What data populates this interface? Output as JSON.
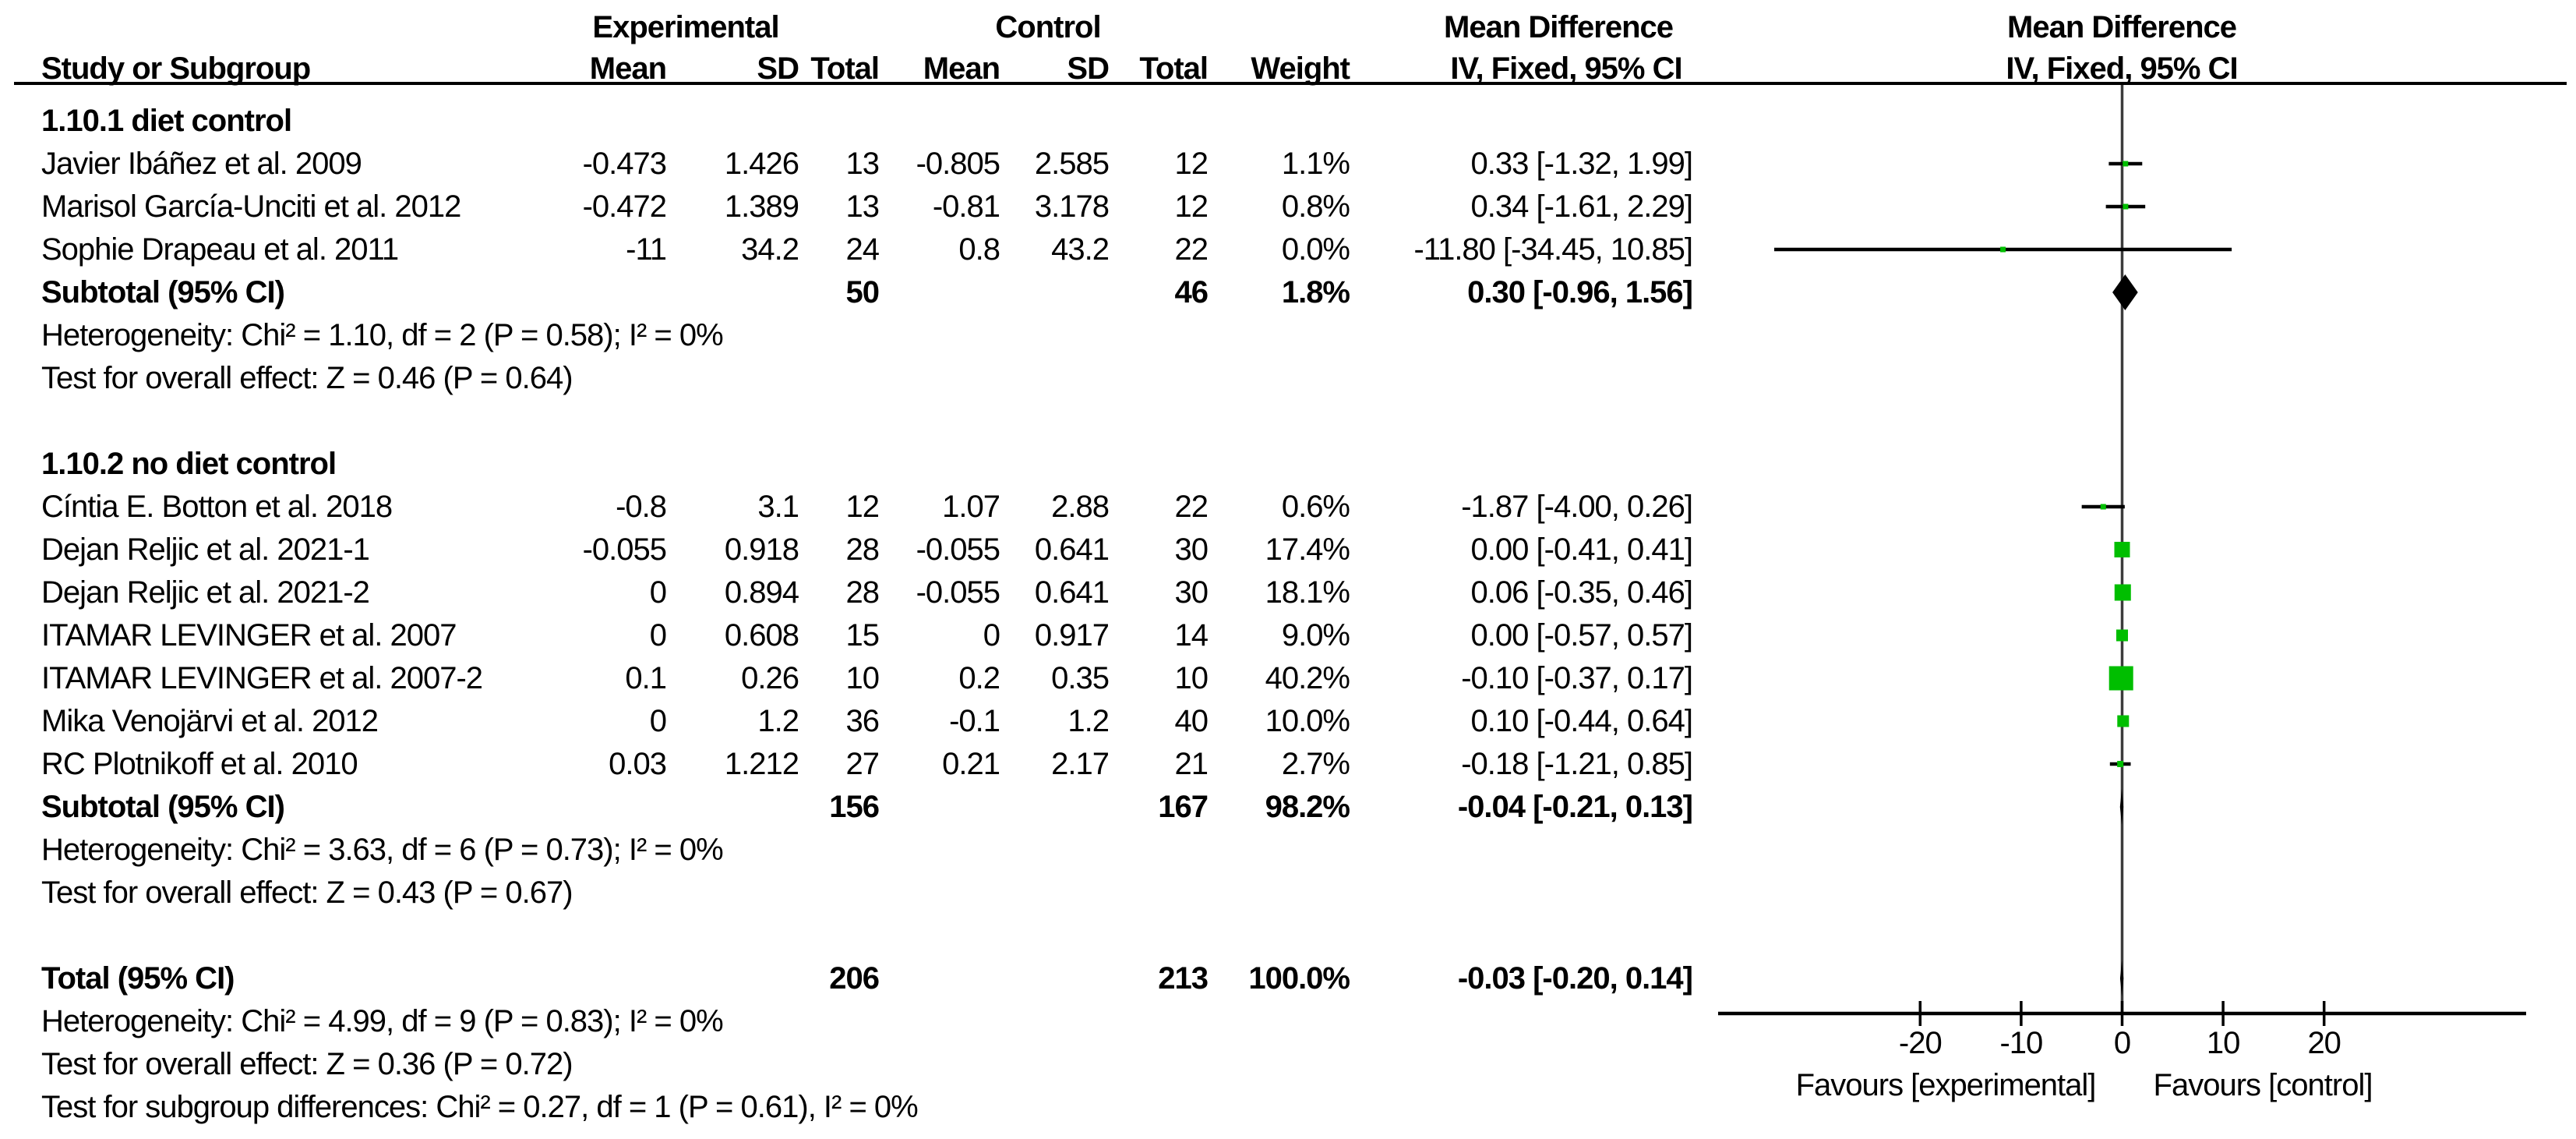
{
  "headers": {
    "experimental": "Experimental",
    "control": "Control",
    "mean_difference": "Mean Difference",
    "study": "Study or Subgroup",
    "mean": "Mean",
    "sd": "SD",
    "total": "Total",
    "weight": "Weight",
    "iv": "IV, Fixed, 95% CI"
  },
  "colors": {
    "square": "#00BE00",
    "diamond": "#000000",
    "ci_line": "#000000",
    "zero_line": "#3C3C3C",
    "axis": "#000000"
  },
  "chart_data": {
    "type": "forest",
    "effect_measure": "Mean Difference",
    "method": "IV, Fixed, 95% CI",
    "xlim": [
      -40,
      40
    ],
    "x_ticks": [
      -20,
      -10,
      0,
      10,
      20
    ],
    "x_tick_labels": [
      "-20",
      "-10",
      "0",
      "10",
      "20"
    ],
    "favours_left": "Favours [experimental]",
    "favours_right": "Favours [control]",
    "subgroups": [
      {
        "name": "1.10.1 diet control",
        "studies": [
          {
            "name": "Javier Ibáñez et al. 2009",
            "exp": {
              "mean": "-0.473",
              "sd": "1.426",
              "total": "13"
            },
            "ctrl": {
              "mean": "-0.805",
              "sd": "2.585",
              "total": "12"
            },
            "weight": "1.1%",
            "weight_pct": 1.1,
            "md": 0.33,
            "ci_low": -1.32,
            "ci_high": 1.99,
            "ci_text": "0.33 [-1.32, 1.99]"
          },
          {
            "name": "Marisol García-Unciti et al. 2012",
            "exp": {
              "mean": "-0.472",
              "sd": "1.389",
              "total": "13"
            },
            "ctrl": {
              "mean": "-0.81",
              "sd": "3.178",
              "total": "12"
            },
            "weight": "0.8%",
            "weight_pct": 0.8,
            "md": 0.34,
            "ci_low": -1.61,
            "ci_high": 2.29,
            "ci_text": "0.34 [-1.61, 2.29]"
          },
          {
            "name": "Sophie Drapeau et al. 2011",
            "exp": {
              "mean": "-11",
              "sd": "34.2",
              "total": "24"
            },
            "ctrl": {
              "mean": "0.8",
              "sd": "43.2",
              "total": "22"
            },
            "weight": "0.0%",
            "weight_pct": 0.0,
            "md": -11.8,
            "ci_low": -34.45,
            "ci_high": 10.85,
            "ci_text": "-11.80 [-34.45, 10.85]"
          }
        ],
        "subtotal": {
          "label": "Subtotal (95% CI)",
          "exp_total": "50",
          "ctrl_total": "46",
          "weight": "1.8%",
          "md": 0.3,
          "ci_low": -0.96,
          "ci_high": 1.56,
          "ci_text": "0.30 [-0.96, 1.56]"
        },
        "heterogeneity": "Heterogeneity: Chi² = 1.10, df = 2 (P = 0.58); I² = 0%",
        "overall_effect": "Test for overall effect: Z = 0.46 (P = 0.64)"
      },
      {
        "name": "1.10.2 no diet control",
        "studies": [
          {
            "name": "Cíntia E. Botton et al. 2018",
            "exp": {
              "mean": "-0.8",
              "sd": "3.1",
              "total": "12"
            },
            "ctrl": {
              "mean": "1.07",
              "sd": "2.88",
              "total": "22"
            },
            "weight": "0.6%",
            "weight_pct": 0.6,
            "md": -1.87,
            "ci_low": -4.0,
            "ci_high": 0.26,
            "ci_text": "-1.87 [-4.00, 0.26]"
          },
          {
            "name": "Dejan Reljic et al. 2021-1",
            "exp": {
              "mean": "-0.055",
              "sd": "0.918",
              "total": "28"
            },
            "ctrl": {
              "mean": "-0.055",
              "sd": "0.641",
              "total": "30"
            },
            "weight": "17.4%",
            "weight_pct": 17.4,
            "md": 0.0,
            "ci_low": -0.41,
            "ci_high": 0.41,
            "ci_text": "0.00 [-0.41, 0.41]"
          },
          {
            "name": "Dejan Reljic et al. 2021-2",
            "exp": {
              "mean": "0",
              "sd": "0.894",
              "total": "28"
            },
            "ctrl": {
              "mean": "-0.055",
              "sd": "0.641",
              "total": "30"
            },
            "weight": "18.1%",
            "weight_pct": 18.1,
            "md": 0.06,
            "ci_low": -0.35,
            "ci_high": 0.46,
            "ci_text": "0.06 [-0.35, 0.46]"
          },
          {
            "name": "ITAMAR LEVINGER et al. 2007",
            "exp": {
              "mean": "0",
              "sd": "0.608",
              "total": "15"
            },
            "ctrl": {
              "mean": "0",
              "sd": "0.917",
              "total": "14"
            },
            "weight": "9.0%",
            "weight_pct": 9.0,
            "md": 0.0,
            "ci_low": -0.57,
            "ci_high": 0.57,
            "ci_text": "0.00 [-0.57, 0.57]"
          },
          {
            "name": "ITAMAR LEVINGER et al. 2007-2",
            "exp": {
              "mean": "0.1",
              "sd": "0.26",
              "total": "10"
            },
            "ctrl": {
              "mean": "0.2",
              "sd": "0.35",
              "total": "10"
            },
            "weight": "40.2%",
            "weight_pct": 40.2,
            "md": -0.1,
            "ci_low": -0.37,
            "ci_high": 0.17,
            "ci_text": "-0.10 [-0.37, 0.17]"
          },
          {
            "name": "Mika Venojärvi et al. 2012",
            "exp": {
              "mean": "0",
              "sd": "1.2",
              "total": "36"
            },
            "ctrl": {
              "mean": "-0.1",
              "sd": "1.2",
              "total": "40"
            },
            "weight": "10.0%",
            "weight_pct": 10.0,
            "md": 0.1,
            "ci_low": -0.44,
            "ci_high": 0.64,
            "ci_text": "0.10 [-0.44, 0.64]"
          },
          {
            "name": "RC Plotnikoff et al. 2010",
            "exp": {
              "mean": "0.03",
              "sd": "1.212",
              "total": "27"
            },
            "ctrl": {
              "mean": "0.21",
              "sd": "2.17",
              "total": "21"
            },
            "weight": "2.7%",
            "weight_pct": 2.7,
            "md": -0.18,
            "ci_low": -1.21,
            "ci_high": 0.85,
            "ci_text": "-0.18 [-1.21, 0.85]"
          }
        ],
        "subtotal": {
          "label": "Subtotal (95% CI)",
          "exp_total": "156",
          "ctrl_total": "167",
          "weight": "98.2%",
          "md": -0.04,
          "ci_low": -0.21,
          "ci_high": 0.13,
          "ci_text": "-0.04 [-0.21, 0.13]"
        },
        "heterogeneity": "Heterogeneity: Chi² = 3.63, df = 6 (P = 0.73); I² = 0%",
        "overall_effect": "Test for overall effect: Z = 0.43 (P = 0.67)"
      }
    ],
    "overall": {
      "label": "Total (95% CI)",
      "exp_total": "206",
      "ctrl_total": "213",
      "weight": "100.0%",
      "md": -0.03,
      "ci_low": -0.2,
      "ci_high": 0.14,
      "ci_text": "-0.03 [-0.20, 0.14]",
      "heterogeneity": "Heterogeneity: Chi² = 4.99, df = 9 (P = 0.83); I² = 0%",
      "overall_effect": "Test for overall effect: Z = 0.36 (P = 0.72)",
      "subgroup_diff": "Test for subgroup differences: Chi² = 0.27, df = 1 (P = 0.61), I² = 0%"
    }
  }
}
